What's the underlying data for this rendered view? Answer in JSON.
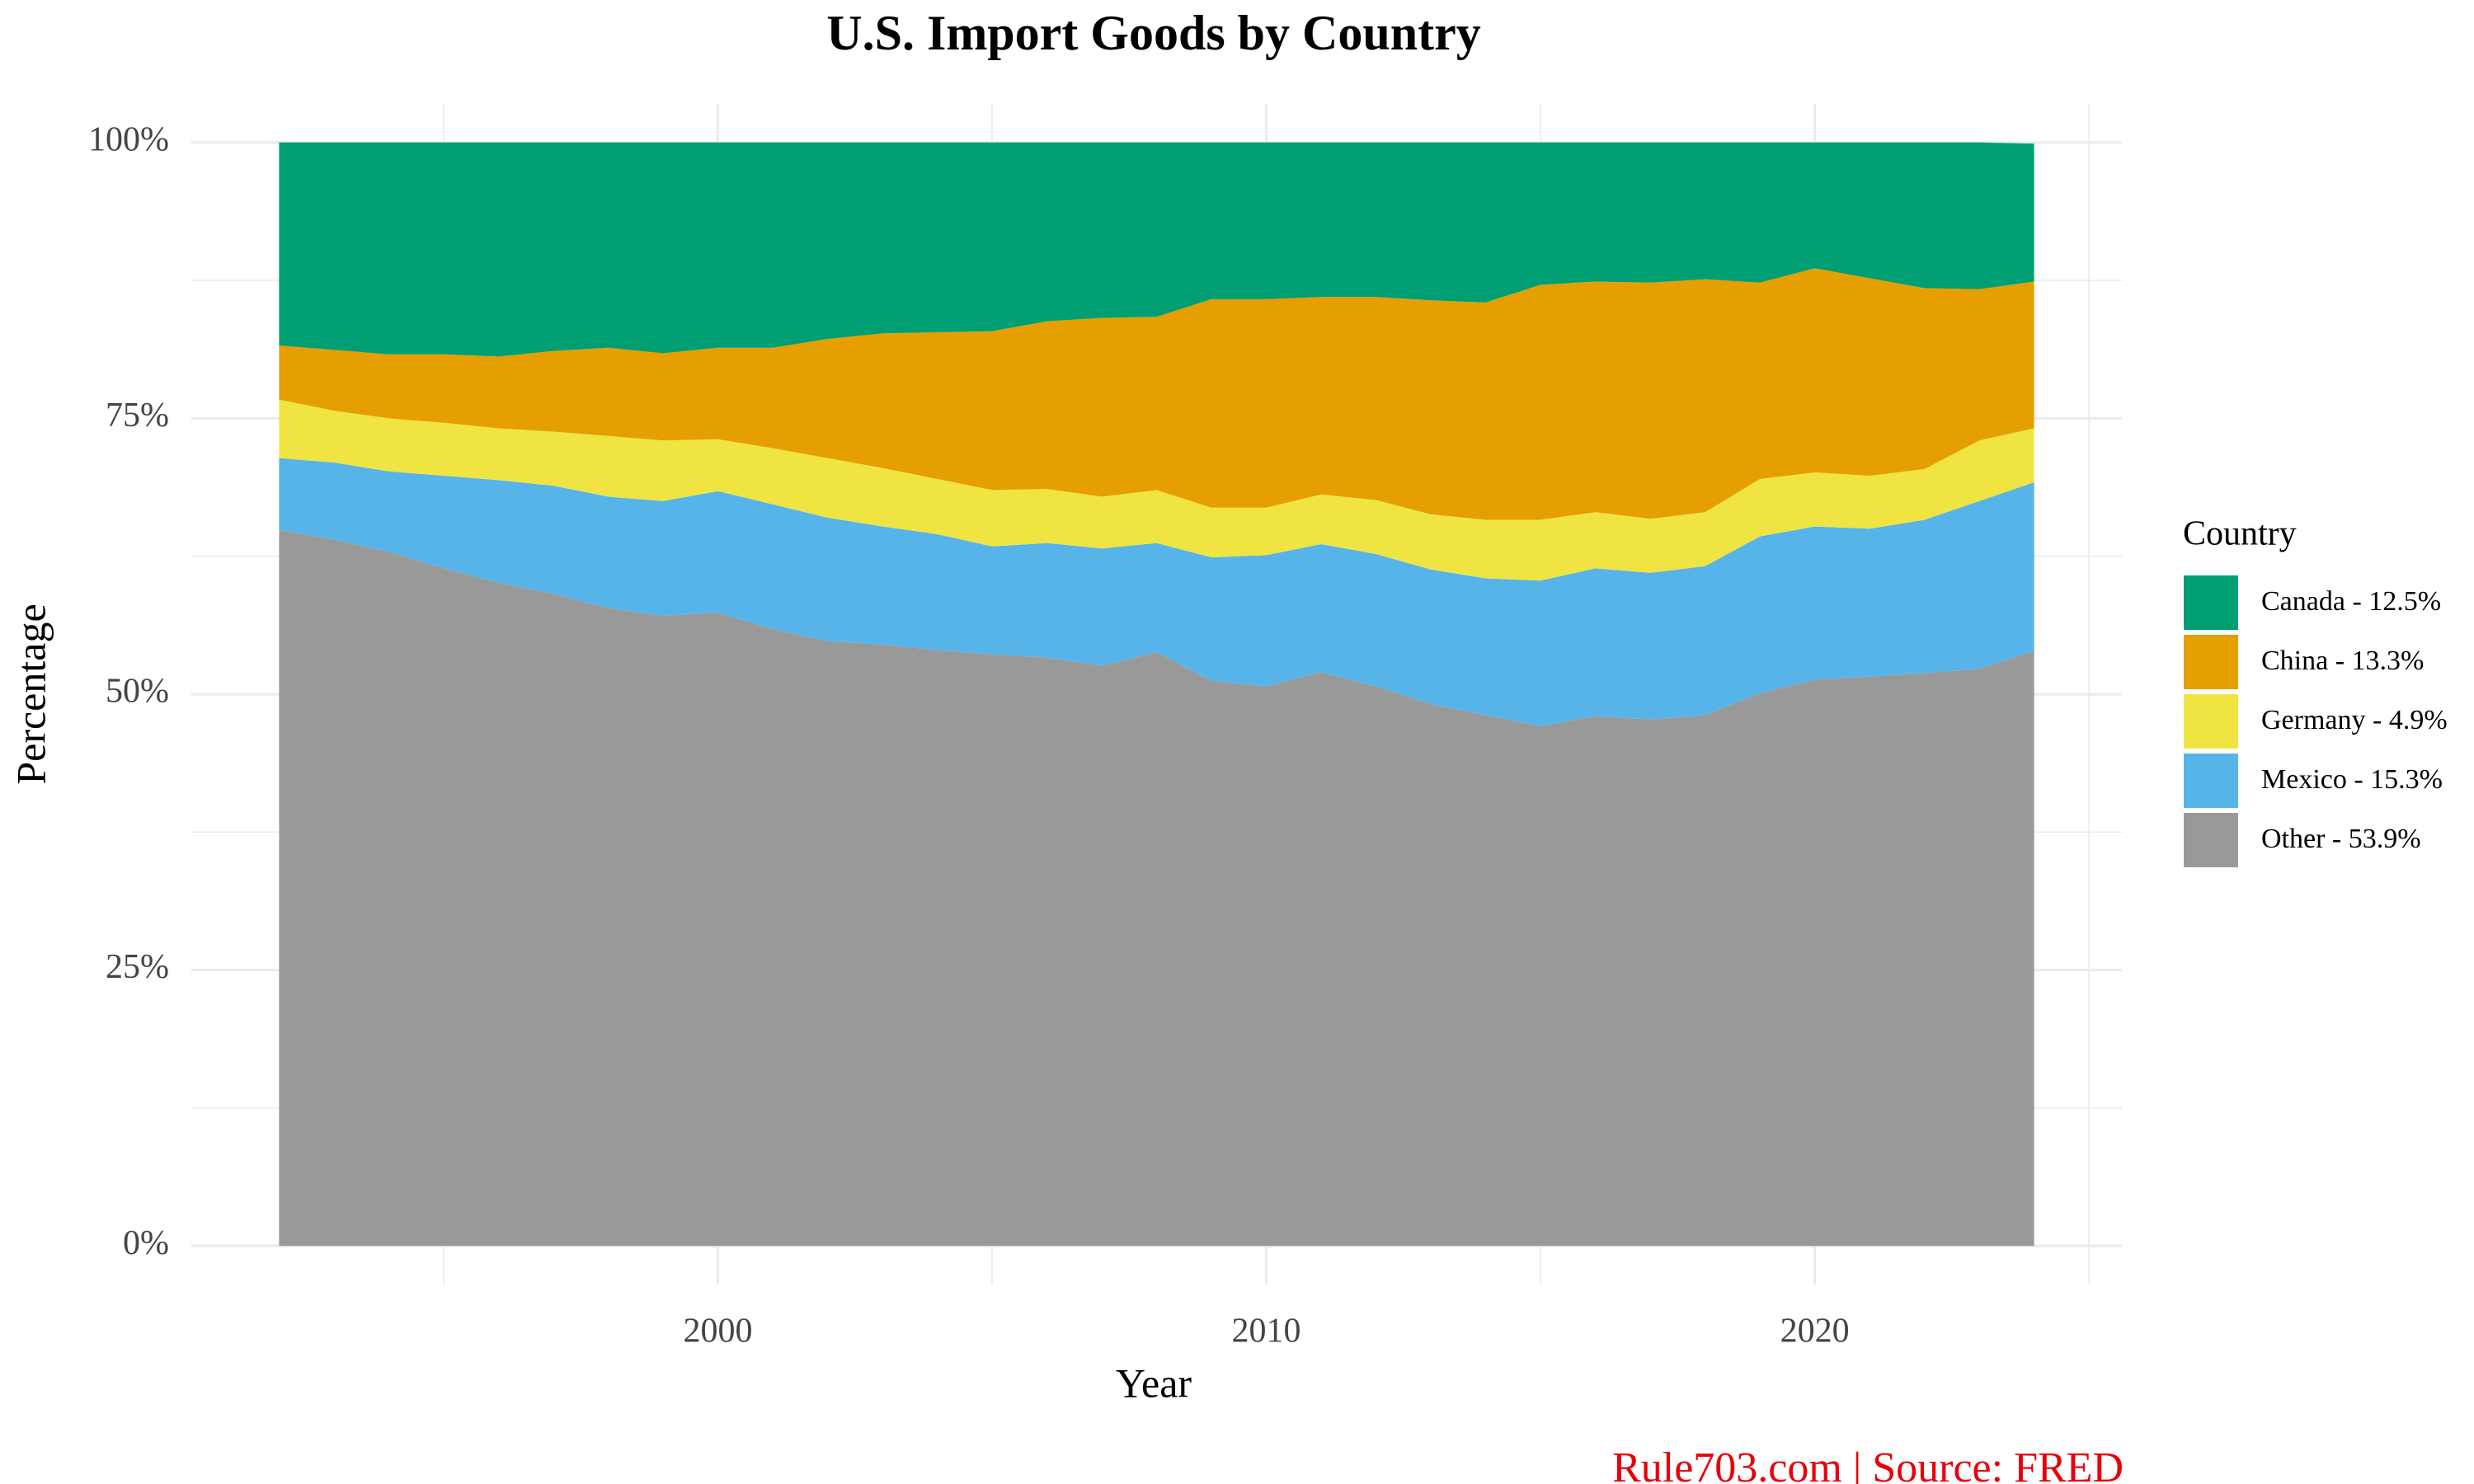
{
  "chart_data": {
    "type": "stacked-area",
    "title": "U.S. Import Goods by Country",
    "x_label": "Year",
    "y_label": "Percentage",
    "legend_title": "Country",
    "legend_position": "right",
    "caption": "Rule703.com | Source: FRED",
    "grid": true,
    "x": [
      1992,
      1993,
      1994,
      1995,
      1996,
      1997,
      1998,
      1999,
      2000,
      2001,
      2002,
      2003,
      2004,
      2005,
      2006,
      2007,
      2008,
      2009,
      2010,
      2011,
      2012,
      2013,
      2014,
      2015,
      2016,
      2017,
      2018,
      2019,
      2020,
      2021,
      2022,
      2023,
      2024
    ],
    "xlim": [
      1990.4,
      2025.6
    ],
    "xticks": [
      2000,
      2010,
      2020
    ],
    "minor_xticks": [
      1995,
      2005,
      2015,
      2025
    ],
    "ylim": [
      -3.5,
      103.5
    ],
    "yticks": [
      {
        "value": 0,
        "label": "0%"
      },
      {
        "value": 25,
        "label": "25%"
      },
      {
        "value": 50,
        "label": "50%"
      },
      {
        "value": 75,
        "label": "75%"
      },
      {
        "value": 100,
        "label": "100%"
      }
    ],
    "minor_yticks": [
      12.5,
      37.5,
      62.5,
      87.5
    ],
    "series": [
      {
        "name": "Canada - 12.5%",
        "color": "#009E73",
        "values": [
          18.4,
          18.8,
          19.2,
          19.2,
          19.4,
          18.9,
          18.6,
          19.1,
          18.6,
          18.6,
          17.8,
          17.3,
          17.2,
          17.1,
          16.2,
          15.9,
          15.8,
          14.2,
          14.2,
          14.0,
          14.0,
          14.3,
          14.5,
          12.9,
          12.6,
          12.7,
          12.4,
          12.7,
          11.4,
          12.3,
          13.2,
          13.3,
          12.5
        ]
      },
      {
        "name": "China - 13.3%",
        "color": "#E69F00",
        "values": [
          4.9,
          5.5,
          5.8,
          6.2,
          6.5,
          7.3,
          8.0,
          7.9,
          8.3,
          9.1,
          10.8,
          12.2,
          13.3,
          14.4,
          15.2,
          16.2,
          15.7,
          18.9,
          18.9,
          17.9,
          18.4,
          19.4,
          19.7,
          21.3,
          20.9,
          21.4,
          21.1,
          17.8,
          18.5,
          17.9,
          16.4,
          13.7,
          13.3
        ]
      },
      {
        "name": "Germany - 4.9%",
        "color": "#F0E442",
        "values": [
          5.3,
          4.7,
          4.8,
          4.8,
          4.7,
          4.9,
          5.5,
          5.5,
          4.7,
          5.1,
          5.4,
          5.3,
          5.0,
          5.1,
          4.9,
          4.7,
          4.8,
          4.5,
          4.3,
          4.5,
          4.9,
          5.0,
          5.3,
          5.5,
          5.1,
          4.9,
          4.9,
          5.2,
          4.9,
          4.8,
          4.6,
          5.5,
          4.9
        ]
      },
      {
        "name": "Mexico - 15.3%",
        "color": "#56B4E9",
        "values": [
          6.5,
          7.0,
          7.3,
          8.4,
          9.3,
          9.8,
          10.1,
          10.4,
          11.0,
          11.3,
          11.2,
          10.7,
          10.5,
          9.8,
          10.4,
          10.6,
          9.9,
          11.2,
          11.9,
          11.6,
          12.0,
          12.2,
          12.4,
          13.2,
          13.4,
          13.3,
          13.5,
          14.2,
          13.9,
          13.4,
          13.9,
          15.2,
          15.3
        ]
      },
      {
        "name": "Other - 53.9%",
        "color": "#999999",
        "values": [
          64.9,
          64.0,
          62.9,
          61.4,
          60.1,
          59.1,
          57.8,
          57.1,
          57.4,
          55.9,
          54.8,
          54.5,
          54.0,
          53.6,
          53.3,
          52.6,
          53.8,
          51.2,
          50.7,
          52.0,
          50.7,
          49.1,
          48.1,
          47.1,
          48.0,
          47.7,
          48.1,
          50.1,
          51.3,
          51.6,
          51.9,
          52.3,
          53.9
        ]
      }
    ]
  }
}
